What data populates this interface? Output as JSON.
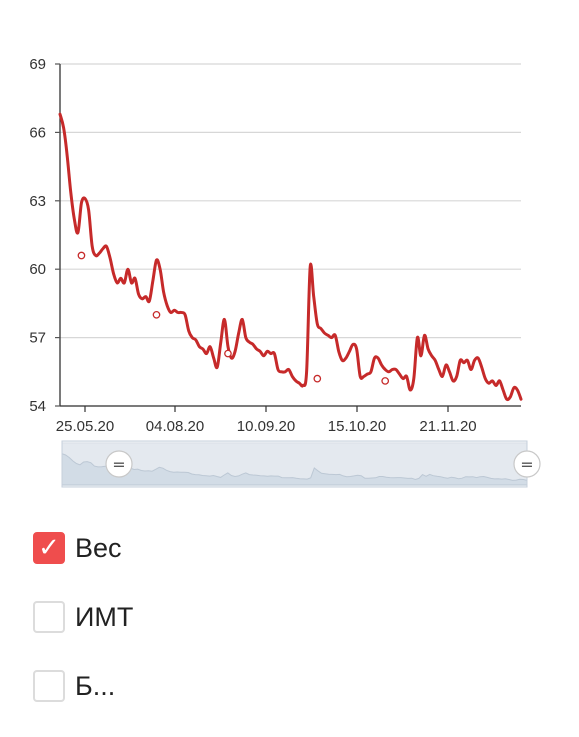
{
  "chart_data": {
    "type": "line",
    "ylim": [
      54,
      69
    ],
    "y_ticks": [
      "69",
      "66",
      "63",
      "60",
      "57",
      "54"
    ],
    "x_ticks": [
      "25.05.20",
      "04.08.20",
      "10.09.20",
      "15.10.20",
      "21.11.20"
    ],
    "series": [
      {
        "name": "Вес",
        "color": "#c62a2a",
        "points": [
          [
            0,
            66.8
          ],
          [
            1,
            66.2
          ],
          [
            2,
            65.0
          ],
          [
            3,
            63.4
          ],
          [
            4,
            62.2
          ],
          [
            5,
            61.6
          ],
          [
            6,
            62.9
          ],
          [
            7,
            63.1
          ],
          [
            8,
            62.6
          ],
          [
            9,
            61.0
          ],
          [
            10,
            60.6
          ],
          [
            11,
            60.7
          ],
          [
            12,
            60.9
          ],
          [
            13,
            61.0
          ],
          [
            14,
            60.5
          ],
          [
            15,
            59.8
          ],
          [
            16,
            59.4
          ],
          [
            17,
            59.6
          ],
          [
            18,
            59.4
          ],
          [
            19,
            60.0
          ],
          [
            20,
            59.4
          ],
          [
            21,
            59.6
          ],
          [
            22,
            58.9
          ],
          [
            23,
            58.7
          ],
          [
            24,
            58.8
          ],
          [
            25,
            58.6
          ],
          [
            26,
            59.5
          ],
          [
            27,
            60.4
          ],
          [
            28,
            60.0
          ],
          [
            29,
            59.0
          ],
          [
            30,
            58.4
          ],
          [
            31,
            58.1
          ],
          [
            32,
            58.2
          ],
          [
            33,
            58.1
          ],
          [
            34,
            58.1
          ],
          [
            35,
            58.0
          ],
          [
            36,
            57.3
          ],
          [
            37,
            57.0
          ],
          [
            38,
            56.9
          ],
          [
            39,
            56.6
          ],
          [
            40,
            56.5
          ],
          [
            41,
            56.3
          ],
          [
            42,
            56.6
          ],
          [
            43,
            56.1
          ],
          [
            44,
            55.7
          ],
          [
            45,
            56.8
          ],
          [
            46,
            57.8
          ],
          [
            47,
            56.6
          ],
          [
            48,
            56.1
          ],
          [
            49,
            56.4
          ],
          [
            50,
            57.2
          ],
          [
            51,
            57.8
          ],
          [
            52,
            57.0
          ],
          [
            53,
            56.8
          ],
          [
            54,
            56.7
          ],
          [
            55,
            56.5
          ],
          [
            56,
            56.4
          ],
          [
            57,
            56.2
          ],
          [
            58,
            56.4
          ],
          [
            59,
            56.3
          ],
          [
            60,
            56.3
          ],
          [
            61,
            55.6
          ],
          [
            62,
            55.5
          ],
          [
            63,
            55.5
          ],
          [
            64,
            55.6
          ],
          [
            65,
            55.3
          ],
          [
            66,
            55.1
          ],
          [
            67,
            55.0
          ],
          [
            68,
            54.9
          ],
          [
            69,
            55.5
          ],
          [
            70,
            60.1
          ],
          [
            71,
            58.8
          ],
          [
            72,
            57.6
          ],
          [
            73,
            57.4
          ],
          [
            74,
            57.2
          ],
          [
            75,
            57.1
          ],
          [
            76,
            57.0
          ],
          [
            77,
            57.1
          ],
          [
            78,
            56.4
          ],
          [
            79,
            56.0
          ],
          [
            80,
            56.1
          ],
          [
            81,
            56.4
          ],
          [
            82,
            56.7
          ],
          [
            83,
            56.5
          ],
          [
            84,
            55.3
          ],
          [
            85,
            55.3
          ],
          [
            86,
            55.4
          ],
          [
            87,
            55.5
          ],
          [
            88,
            56.1
          ],
          [
            89,
            56.1
          ],
          [
            90,
            55.8
          ],
          [
            91,
            55.6
          ],
          [
            92,
            55.5
          ],
          [
            93,
            55.6
          ],
          [
            94,
            55.6
          ],
          [
            95,
            55.4
          ],
          [
            96,
            55.2
          ],
          [
            97,
            55.3
          ],
          [
            98,
            54.7
          ],
          [
            99,
            55.2
          ],
          [
            100,
            57.0
          ],
          [
            101,
            56.2
          ],
          [
            102,
            57.1
          ],
          [
            103,
            56.5
          ],
          [
            104,
            56.2
          ],
          [
            105,
            56.0
          ],
          [
            106,
            55.6
          ],
          [
            107,
            55.3
          ],
          [
            108,
            55.8
          ],
          [
            109,
            55.5
          ],
          [
            110,
            55.1
          ],
          [
            111,
            55.3
          ],
          [
            112,
            56.0
          ],
          [
            113,
            55.9
          ],
          [
            114,
            56.0
          ],
          [
            115,
            55.6
          ],
          [
            116,
            56.0
          ],
          [
            117,
            56.1
          ],
          [
            118,
            55.7
          ],
          [
            119,
            55.2
          ],
          [
            120,
            55.0
          ],
          [
            121,
            55.1
          ],
          [
            122,
            54.9
          ],
          [
            123,
            55.1
          ],
          [
            124,
            54.7
          ],
          [
            125,
            54.3
          ],
          [
            126,
            54.4
          ],
          [
            127,
            54.8
          ],
          [
            128,
            54.7
          ],
          [
            129,
            54.3
          ]
        ],
        "markers": [
          [
            6,
            60.6
          ],
          [
            27,
            58.0
          ],
          [
            47,
            56.3
          ],
          [
            72,
            55.2
          ],
          [
            91,
            55.1
          ]
        ]
      }
    ],
    "grid": "horizontal",
    "navigator": {
      "selection": [
        0,
        100
      ],
      "fill_color": "#d6dfe9",
      "line_color": "#b9c4d1",
      "handle_symbol": "="
    }
  },
  "legend": {
    "items": [
      {
        "label": "Вес",
        "checked": true,
        "check_glyph": "✓"
      },
      {
        "label": "ИМТ",
        "checked": false
      },
      {
        "label": "Б...",
        "checked": false
      }
    ]
  }
}
